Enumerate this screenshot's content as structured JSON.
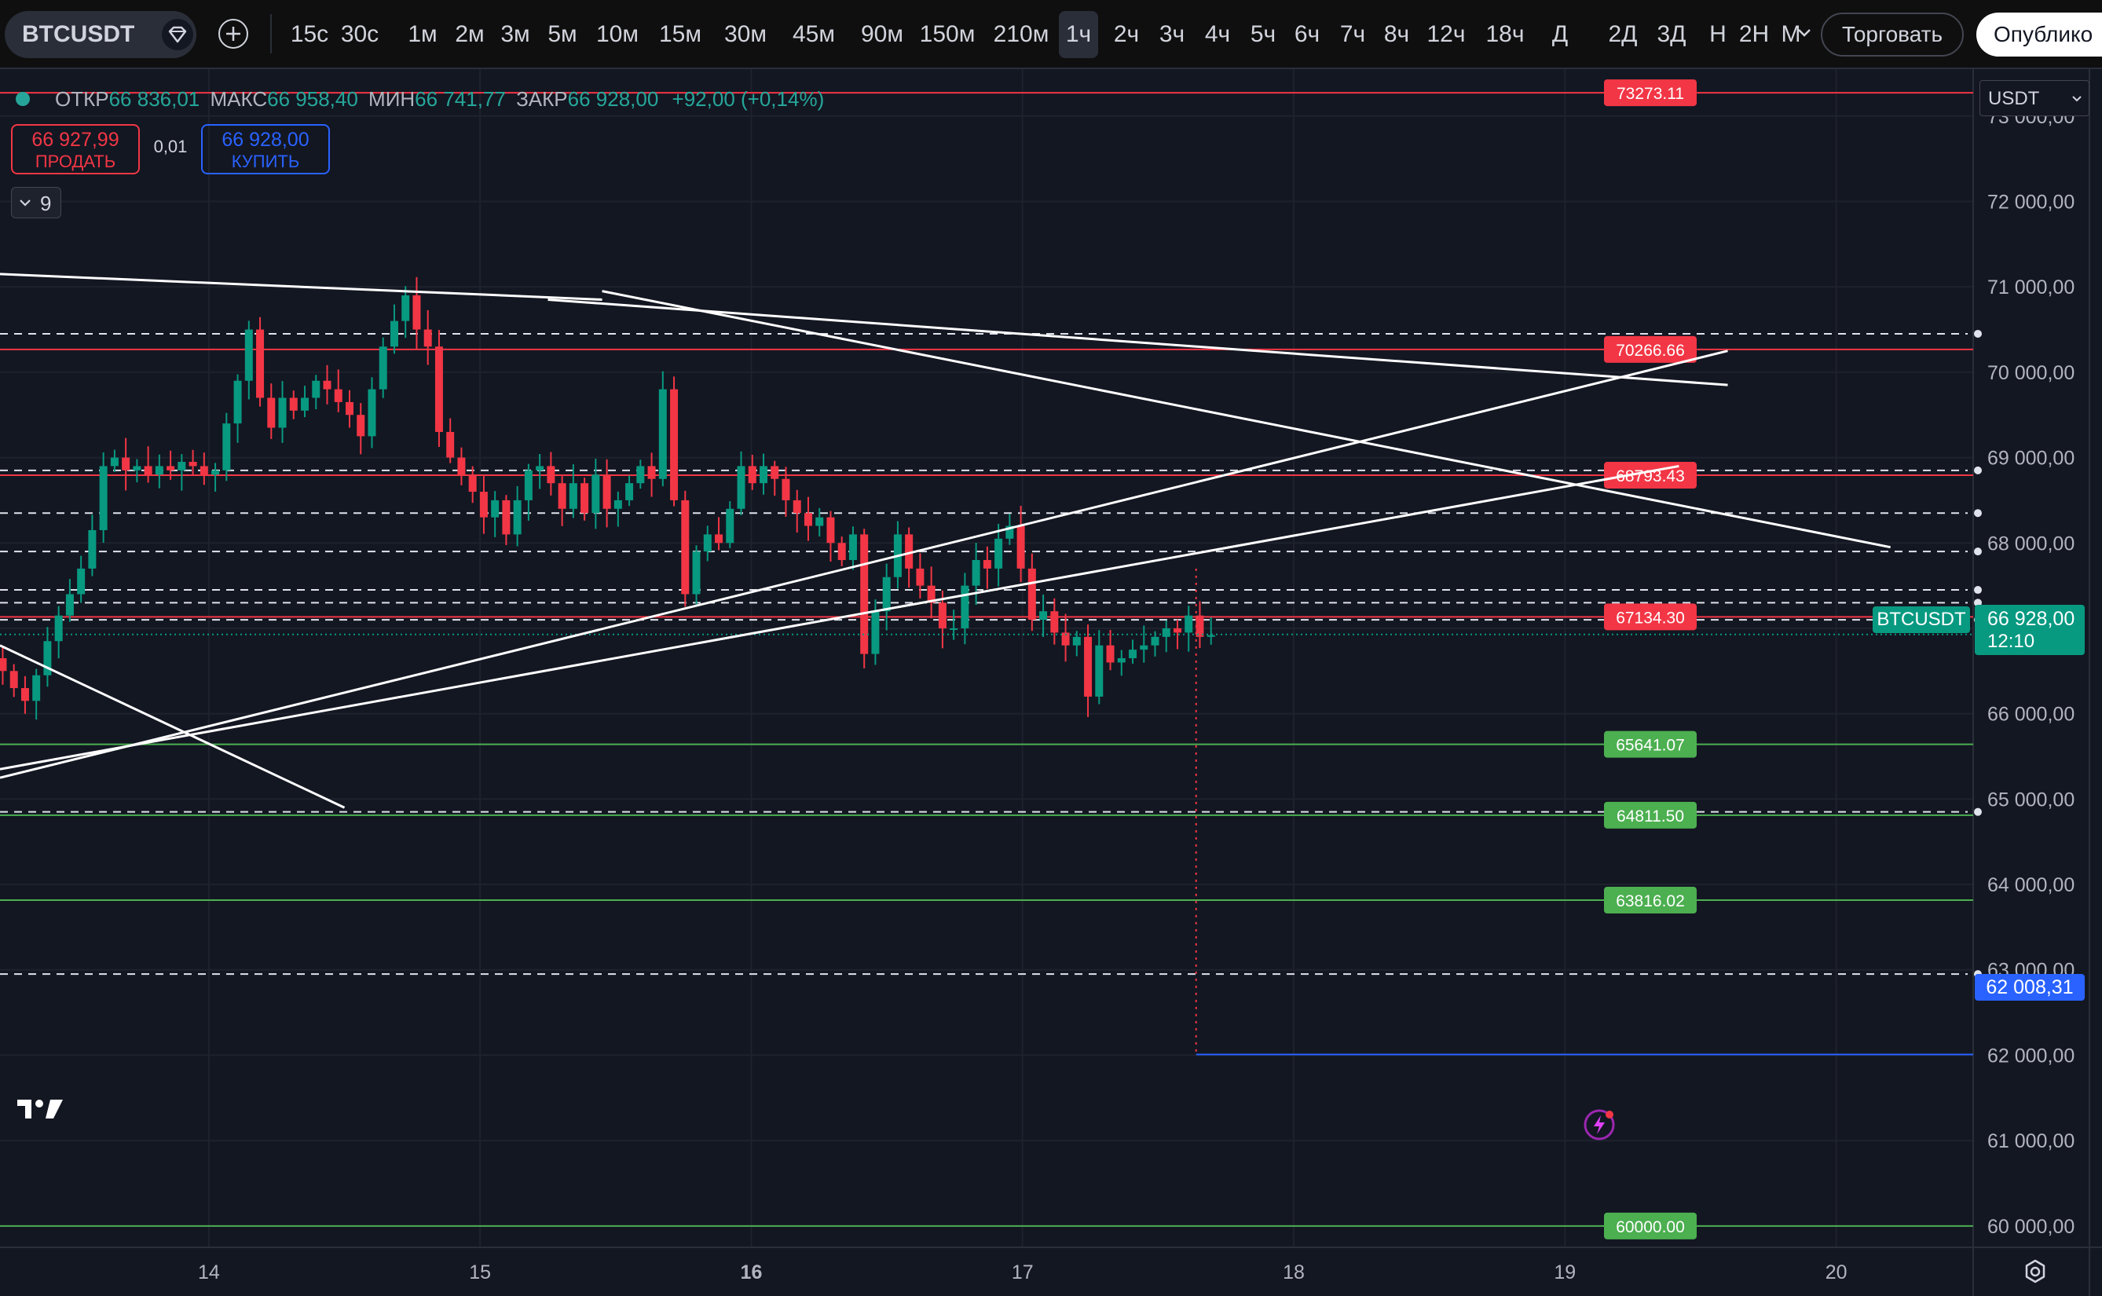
{
  "toolbar": {
    "symbol": "BTCUSDT",
    "intervals": [
      "15с",
      "30с",
      "1м",
      "2м",
      "3м",
      "5м",
      "10м",
      "15м",
      "30м",
      "45м",
      "90м",
      "150м",
      "210м",
      "1ч",
      "2ч",
      "3ч",
      "4ч",
      "5ч",
      "6ч",
      "7ч",
      "8ч",
      "12ч",
      "18ч",
      "Д",
      "2Д",
      "3Д",
      "Н",
      "2Н",
      "М"
    ],
    "active_interval": "1ч",
    "trade_label": "Торговать",
    "publish_label": "Опублико"
  },
  "legend": {
    "open_label": "ОТКР",
    "open": "66 836,01",
    "high_label": "МАКС",
    "high": "66 958,40",
    "low_label": "МИН",
    "low": "66 741,77",
    "close_label": "ЗАКР",
    "close": "66 928,00",
    "change": "+92,00 (+0,14%)"
  },
  "order_panel": {
    "sell_price": "66 927,99",
    "sell_label": "ПРОДАТЬ",
    "spread": "0,01",
    "buy_price": "66 928,00",
    "buy_label": "КУПИТЬ",
    "collapsed_count": "9"
  },
  "currency": "USDT",
  "price_scale": {
    "current_symbol": "BTCUSDT",
    "current_price": "66 928,00",
    "countdown": "12:10",
    "target_price": "62 008,31"
  },
  "colors": {
    "up": "#089981",
    "down": "#f23645",
    "background": "#131722",
    "grid": "#1e222d"
  },
  "chart_data": {
    "type": "candlestick",
    "symbol": "BTCUSDT",
    "interval": "1ч",
    "y_axis_ticks": [
      60000,
      61000,
      62000,
      63000,
      64000,
      65000,
      66000,
      67000,
      68000,
      69000,
      70000,
      71000,
      72000,
      73000
    ],
    "y_axis_labels": [
      "60 000,00",
      "61 000,00",
      "62 000,00",
      "63 000,00",
      "64 000,00",
      "65 000,00",
      "66 000,00",
      "67 000,00",
      "68 000,00",
      "69 000,00",
      "70 000,00",
      "71 000,00",
      "72 000,00",
      "73 000,00"
    ],
    "x_axis_labels": [
      {
        "label": "14",
        "day": 14,
        "bold": false
      },
      {
        "label": "15",
        "day": 15,
        "bold": false
      },
      {
        "label": "16",
        "day": 16,
        "bold": true
      },
      {
        "label": "17",
        "day": 17,
        "bold": false
      },
      {
        "label": "18",
        "day": 18,
        "bold": false
      },
      {
        "label": "19",
        "day": 19,
        "bold": false
      },
      {
        "label": "20",
        "day": 20,
        "bold": false
      }
    ],
    "y_range": [
      59750,
      73550
    ],
    "x_range": [
      13.23,
      20.98
    ],
    "start_day": 13.24,
    "closes": [
      66500,
      66300,
      66150,
      66450,
      66850,
      67150,
      67400,
      67700,
      68150,
      68900,
      69000,
      68850,
      68900,
      68800,
      68900,
      68850,
      68950,
      68900,
      68800,
      68850,
      69400,
      69900,
      70500,
      69700,
      69350,
      69700,
      69550,
      69700,
      69900,
      69800,
      69650,
      69500,
      69250,
      69800,
      70300,
      70600,
      70900,
      70500,
      70300,
      69300,
      69000,
      68800,
      68600,
      68300,
      68500,
      68100,
      68500,
      68850,
      68900,
      68700,
      68400,
      68700,
      68350,
      68800,
      68400,
      68500,
      68700,
      68900,
      68750,
      69800,
      68500,
      67400,
      67900,
      68100,
      68000,
      68400,
      68900,
      68700,
      68900,
      68750,
      68500,
      68350,
      68200,
      68300,
      68000,
      67800,
      68100,
      66700,
      67200,
      67600,
      68100,
      67700,
      67500,
      67300,
      67000,
      67000,
      67500,
      67800,
      67700,
      68050,
      68200,
      67700,
      67100,
      67200,
      66950,
      66800,
      66900,
      66200,
      66800,
      66600,
      66650,
      66750,
      66800,
      66900,
      67000,
      66950,
      67150,
      66900,
      66920
    ]
  },
  "levels": [
    {
      "label": "73273.11",
      "price": 73273.11,
      "type": "resistance"
    },
    {
      "label": "70266.66",
      "price": 70266.66,
      "type": "resistance"
    },
    {
      "label": "68793.43",
      "price": 68793.43,
      "type": "resistance"
    },
    {
      "label": "67134.30",
      "price": 67134.3,
      "type": "resistance"
    },
    {
      "label": "65641.07",
      "price": 65641.07,
      "type": "support"
    },
    {
      "label": "64811.50",
      "price": 64811.5,
      "type": "support"
    },
    {
      "label": "63816.02",
      "price": 63816.02,
      "type": "support"
    },
    {
      "label": "60000.00",
      "price": 60000.0,
      "type": "support"
    }
  ],
  "dashed_levels": [
    70450,
    68850,
    68350,
    67900,
    67450,
    67300,
    67100,
    64850,
    62950
  ],
  "trendlines": [
    {
      "from": [
        13.23,
        71150
      ],
      "to": [
        15.45,
        70850
      ]
    },
    {
      "from": [
        15.25,
        70850
      ],
      "to": [
        19.6,
        69850
      ]
    },
    {
      "from": [
        15.45,
        70950
      ],
      "to": [
        20.2,
        67950
      ]
    },
    {
      "from": [
        13.23,
        65250
      ],
      "to": [
        19.6,
        70250
      ]
    },
    {
      "from": [
        13.23,
        65350
      ],
      "to": [
        19.42,
        68900
      ]
    },
    {
      "from": [
        13.23,
        66800
      ],
      "to": [
        14.5,
        64900
      ]
    }
  ],
  "projection": {
    "day": 17.64,
    "price": 62008.31
  }
}
